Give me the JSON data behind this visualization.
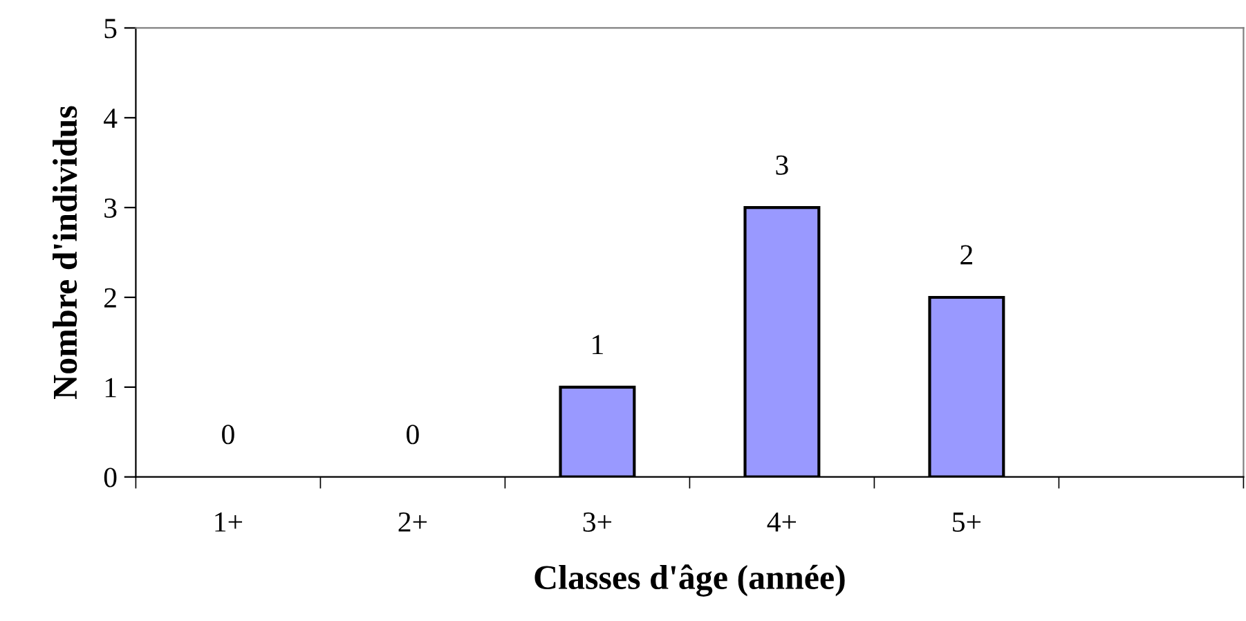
{
  "chart_data": {
    "type": "bar",
    "xlabel": "Classes d'âge (année)",
    "ylabel": "Nombre d'individus",
    "categories": [
      "1+",
      "2+",
      "3+",
      "4+",
      "5+",
      null
    ],
    "values": [
      0,
      0,
      1,
      3,
      2,
      null
    ],
    "color": "#9999ff",
    "ylim": [
      0,
      5
    ],
    "yticks": [
      0,
      1,
      2,
      3,
      4,
      5
    ],
    "grid": false,
    "legend": false,
    "data_labels": true
  }
}
